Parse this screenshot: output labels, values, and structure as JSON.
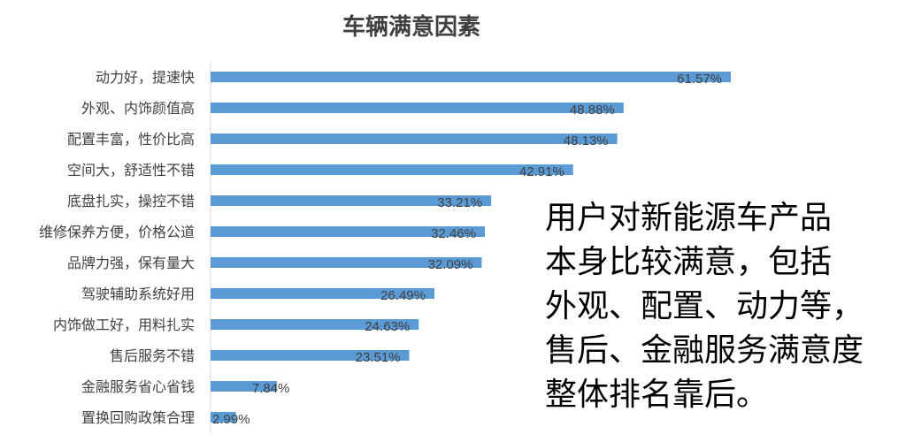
{
  "chart_data": {
    "type": "bar",
    "orientation": "horizontal",
    "title": "车辆满意因素",
    "categories": [
      "动力好，提速快",
      "外观、内饰颜值高",
      "配置丰富，性价比高",
      "空间大，舒适性不错",
      "底盘扎实，操控不错",
      "维修保养方便，价格公道",
      "品牌力强，保有量大",
      "驾驶辅助系统好用",
      "内饰做工好，用料扎实",
      "售后服务不错",
      "金融服务省心省钱",
      "置换回购政策合理"
    ],
    "values": [
      61.57,
      48.88,
      48.13,
      42.91,
      33.21,
      32.46,
      32.09,
      26.49,
      24.63,
      23.51,
      7.84,
      2.99
    ],
    "labels": [
      "61.57%",
      "48.88%",
      "48.13%",
      "42.91%",
      "33.21%",
      "32.46%",
      "32.09%",
      "26.49%",
      "24.63%",
      "23.51%",
      "7.84%",
      "2.99%"
    ],
    "xlabel": "",
    "ylabel": "",
    "xlim": [
      0,
      65
    ],
    "grid": false,
    "legend": "none",
    "bar_color": "#5b9bd5"
  },
  "annotation": "用户对新能源车产品本身比较满意，包括外观、配置、动力等，售后、金融服务满意度整体排名靠后。",
  "annotation_lines": [
    "用户对新能源车产品",
    "本身比较满意，包括",
    "外观、配置、动力等，",
    "售后、金融服务满意度",
    "整体排名靠后。"
  ]
}
